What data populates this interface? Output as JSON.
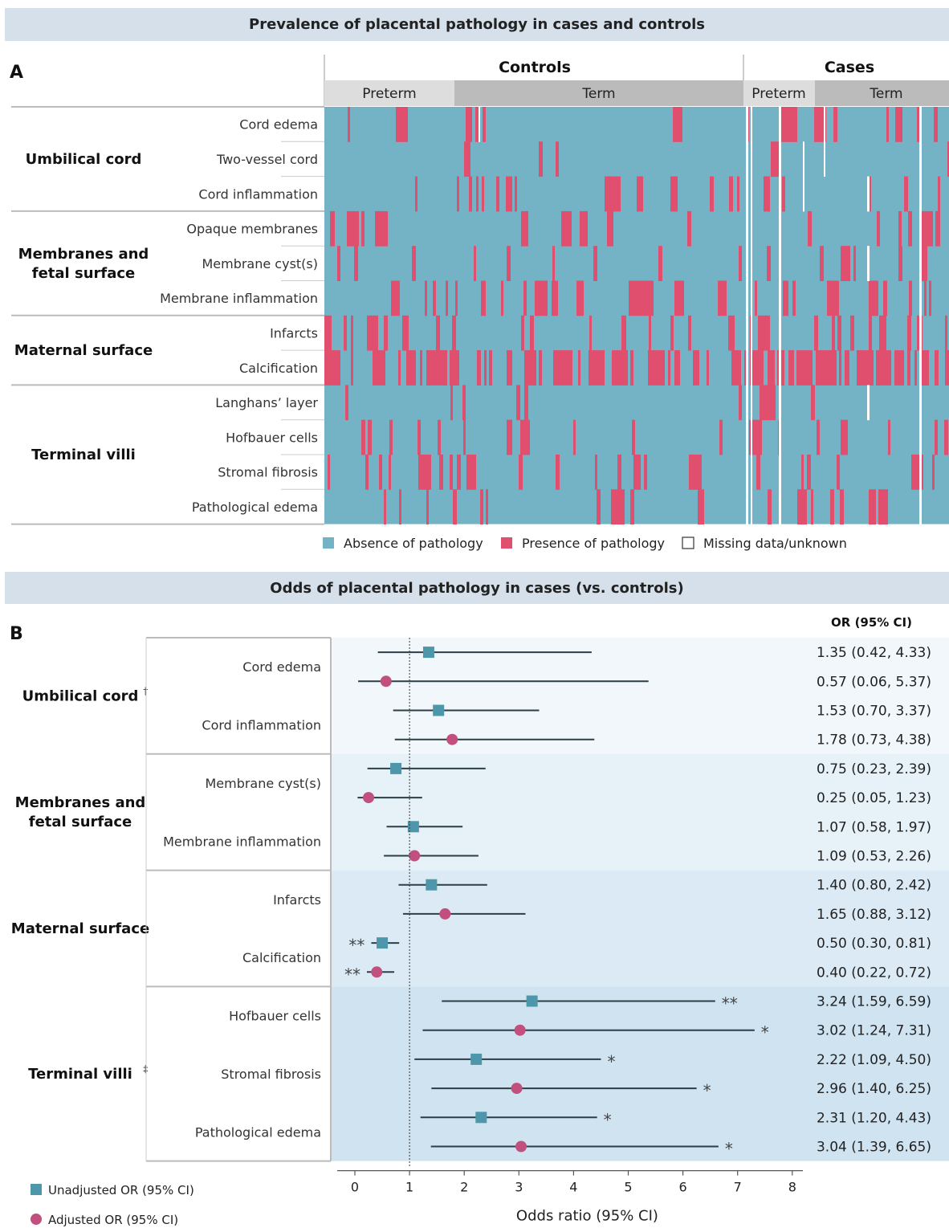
{
  "panel_a": {
    "banner": "Prevalence of placental pathology in cases and controls",
    "letter": "A",
    "groups": {
      "controls": "Controls",
      "cases": "Cases"
    },
    "subgroups": {
      "preterm": "Preterm",
      "term": "Term"
    },
    "categories": [
      {
        "name": "Umbilical cord",
        "rows": [
          "Cord edema",
          "Two-vessel cord",
          "Cord inflammation"
        ]
      },
      {
        "name": "Membranes and fetal surface",
        "rows": [
          "Opaque membranes",
          "Membrane cyst(s)",
          "Membrane inflammation"
        ]
      },
      {
        "name": "Maternal surface",
        "rows": [
          "Infarcts",
          "Calcification"
        ]
      },
      {
        "name": "Terminal villi",
        "rows": [
          "Langhans’ layer",
          "Hofbauer cells",
          "Stromal fibrosis",
          "Pathological edema"
        ]
      }
    ],
    "legend": [
      {
        "label": "Absence of pathology",
        "color": "#74b3c5"
      },
      {
        "label": "Presence of pathology",
        "color": "#e14f6e"
      },
      {
        "label": "Missing data/unknown",
        "color": "#ffffff"
      }
    ]
  },
  "panel_b": {
    "banner": "Odds of placental pathology in cases (vs. controls)",
    "letter": "B",
    "or_header": "OR (95% CI)",
    "legend": [
      {
        "label": "Unadjusted OR (95% CI)",
        "color": "#4e97ab",
        "shape": "square"
      },
      {
        "label": "Adjusted OR (95% CI)",
        "color": "#c2507e",
        "shape": "circle"
      }
    ]
  },
  "chart_data": [
    {
      "type": "heatmap",
      "title": "Prevalence of placental pathology in cases and controls",
      "columns": {
        "Controls": [
          "Preterm",
          "Term"
        ],
        "Cases": [
          "Preterm",
          "Term"
        ]
      },
      "rows": [
        "Cord edema",
        "Two-vessel cord",
        "Cord inflammation",
        "Opaque membranes",
        "Membrane cyst(s)",
        "Membrane inflammation",
        "Infarcts",
        "Calcification",
        "Langhans’ layer",
        "Hofbauer cells",
        "Stromal fibrosis",
        "Pathological edema"
      ],
      "values": [
        "absence",
        "presence",
        "missing"
      ]
    },
    {
      "type": "scatter",
      "title": "Odds of placental pathology in cases (vs. controls)",
      "xlabel": "Odds ratio (95% CI)",
      "xlim": [
        0,
        8
      ],
      "xticks": [
        0,
        1,
        2,
        3,
        4,
        5,
        6,
        7,
        8
      ],
      "reference_line": 1,
      "groups": [
        {
          "name": "Umbilical cord",
          "marker": "†",
          "items": [
            {
              "label": "Cord edema",
              "unadjusted": {
                "or": 1.35,
                "lo": 0.42,
                "hi": 4.33,
                "text": "1.35 (0.42, 4.33)",
                "sig": ""
              },
              "adjusted": {
                "or": 0.57,
                "lo": 0.06,
                "hi": 5.37,
                "text": "0.57 (0.06, 5.37)",
                "sig": ""
              }
            },
            {
              "label": "Cord inflammation",
              "unadjusted": {
                "or": 1.53,
                "lo": 0.7,
                "hi": 3.37,
                "text": "1.53 (0.70, 3.37)",
                "sig": ""
              },
              "adjusted": {
                "or": 1.78,
                "lo": 0.73,
                "hi": 4.38,
                "text": "1.78 (0.73, 4.38)",
                "sig": ""
              }
            }
          ]
        },
        {
          "name": "Membranes and fetal surface",
          "marker": "",
          "items": [
            {
              "label": "Membrane cyst(s)",
              "unadjusted": {
                "or": 0.75,
                "lo": 0.23,
                "hi": 2.39,
                "text": "0.75 (0.23, 2.39)",
                "sig": ""
              },
              "adjusted": {
                "or": 0.25,
                "lo": 0.05,
                "hi": 1.23,
                "text": "0.25 (0.05, 1.23)",
                "sig": ""
              }
            },
            {
              "label": "Membrane inflammation",
              "unadjusted": {
                "or": 1.07,
                "lo": 0.58,
                "hi": 1.97,
                "text": "1.07 (0.58, 1.97)",
                "sig": ""
              },
              "adjusted": {
                "or": 1.09,
                "lo": 0.53,
                "hi": 2.26,
                "text": "1.09 (0.53, 2.26)",
                "sig": ""
              }
            }
          ]
        },
        {
          "name": "Maternal surface",
          "marker": "",
          "items": [
            {
              "label": "Infarcts",
              "unadjusted": {
                "or": 1.4,
                "lo": 0.8,
                "hi": 2.42,
                "text": "1.40 (0.80, 2.42)",
                "sig": ""
              },
              "adjusted": {
                "or": 1.65,
                "lo": 0.88,
                "hi": 3.12,
                "text": "1.65 (0.88, 3.12)",
                "sig": ""
              }
            },
            {
              "label": "Calcification",
              "unadjusted": {
                "or": 0.5,
                "lo": 0.3,
                "hi": 0.81,
                "text": "0.50 (0.30, 0.81)",
                "sig": "**"
              },
              "adjusted": {
                "or": 0.4,
                "lo": 0.22,
                "hi": 0.72,
                "text": "0.40 (0.22, 0.72)",
                "sig": "**"
              }
            }
          ]
        },
        {
          "name": "Terminal villi",
          "marker": "‡",
          "items": [
            {
              "label": "Hofbauer cells",
              "unadjusted": {
                "or": 3.24,
                "lo": 1.59,
                "hi": 6.59,
                "text": "3.24 (1.59, 6.59)",
                "sig": "**"
              },
              "adjusted": {
                "or": 3.02,
                "lo": 1.24,
                "hi": 7.31,
                "text": "3.02 (1.24, 7.31)",
                "sig": "*"
              }
            },
            {
              "label": "Stromal fibrosis",
              "unadjusted": {
                "or": 2.22,
                "lo": 1.09,
                "hi": 4.5,
                "text": "2.22 (1.09, 4.50)",
                "sig": "*"
              },
              "adjusted": {
                "or": 2.96,
                "lo": 1.4,
                "hi": 6.25,
                "text": "2.96 (1.40, 6.25)",
                "sig": "*"
              }
            },
            {
              "label": "Pathological edema",
              "unadjusted": {
                "or": 2.31,
                "lo": 1.2,
                "hi": 4.43,
                "text": "2.31 (1.20, 4.43)",
                "sig": "*"
              },
              "adjusted": {
                "or": 3.04,
                "lo": 1.39,
                "hi": 6.65,
                "text": "3.04 (1.39, 6.65)",
                "sig": "*"
              }
            }
          ]
        }
      ]
    }
  ]
}
